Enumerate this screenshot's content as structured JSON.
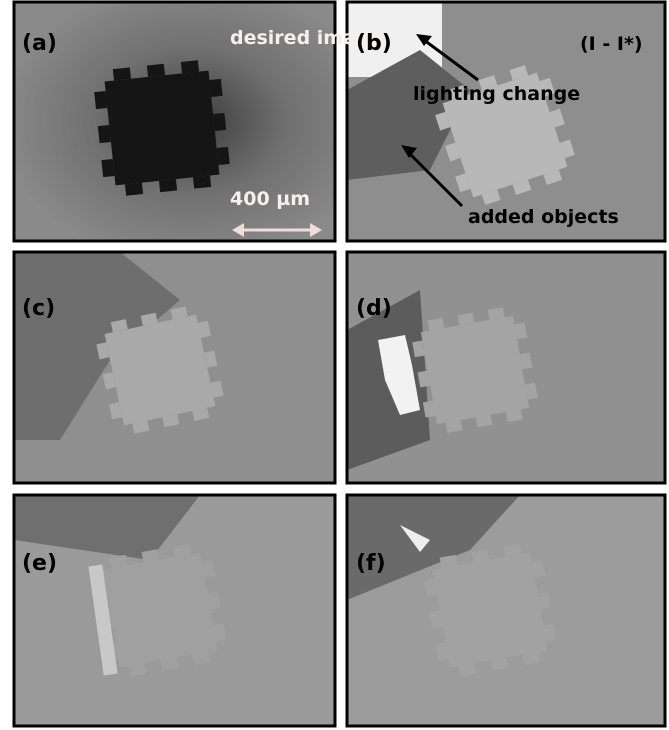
{
  "panels": [
    {
      "label": "(a)",
      "annotations": [
        "desired image",
        "400 µm"
      ]
    },
    {
      "label": "(b)",
      "annotations": [
        "(I - I*)",
        "lighting change",
        "added objects"
      ]
    },
    {
      "label": "(c)",
      "annotations": []
    },
    {
      "label": "(d)",
      "annotations": []
    },
    {
      "label": "(e)",
      "annotations": []
    },
    {
      "label": "(f)",
      "annotations": []
    }
  ]
}
